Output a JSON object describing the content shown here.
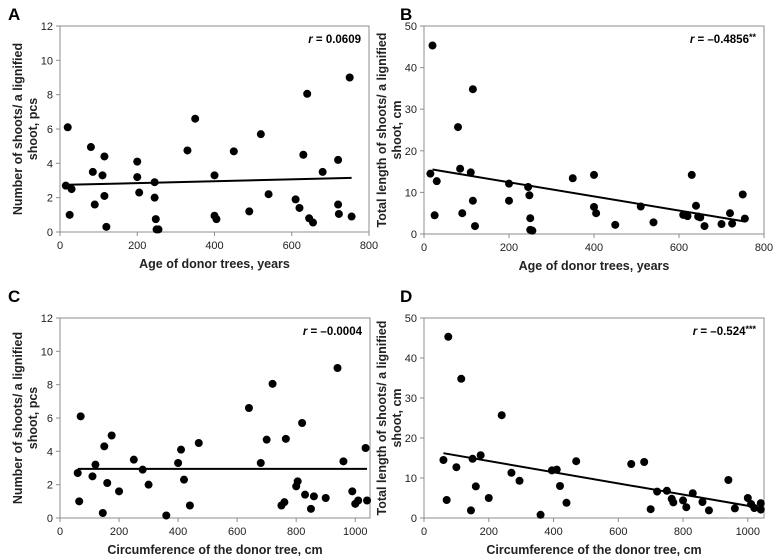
{
  "chart_data": [
    {
      "panel": "A",
      "type": "scatter",
      "xlabel": "Age of donor trees, years",
      "ylabel": [
        "Number of shoots/ a lignified",
        "shoot, pcs"
      ],
      "xlim": [
        0,
        800
      ],
      "ylim": [
        0,
        12
      ],
      "xticks": [
        0,
        200,
        400,
        600,
        800
      ],
      "yticks": [
        0,
        2,
        4,
        6,
        8,
        10,
        12
      ],
      "r_prefix": "r",
      "r_value": " = 0.0609",
      "r_sig": "",
      "trendline": {
        "x": [
          20,
          755
        ],
        "y": [
          2.75,
          3.15
        ]
      },
      "x": [
        15,
        20,
        25,
        30,
        80,
        85,
        90,
        110,
        115,
        115,
        120,
        200,
        200,
        205,
        245,
        245,
        248,
        250,
        255,
        330,
        350,
        400,
        400,
        405,
        450,
        490,
        520,
        540,
        610,
        620,
        630,
        640,
        645,
        655,
        680,
        720,
        720,
        722,
        750,
        755
      ],
      "y": [
        2.7,
        6.1,
        1.0,
        2.5,
        4.95,
        3.5,
        1.6,
        3.3,
        4.4,
        2.1,
        0.3,
        4.1,
        3.2,
        2.3,
        2.9,
        2.0,
        0.75,
        0.15,
        0.15,
        4.75,
        6.6,
        3.3,
        0.95,
        0.75,
        4.7,
        1.2,
        5.7,
        2.2,
        1.9,
        1.4,
        4.5,
        8.05,
        0.8,
        0.55,
        3.5,
        4.2,
        1.6,
        1.05,
        9.0,
        0.9
      ]
    },
    {
      "panel": "B",
      "type": "scatter",
      "xlabel": "Age of donor trees, years",
      "ylabel": [
        "Total length of shoots/ a lignified",
        "shoot, cm"
      ],
      "xlim": [
        0,
        800
      ],
      "ylim": [
        0,
        50
      ],
      "xticks": [
        0,
        200,
        400,
        600,
        800
      ],
      "yticks": [
        0,
        10,
        20,
        30,
        40,
        50
      ],
      "r_prefix": "r",
      "r_value": " = –0.4856",
      "r_sig": "**",
      "trendline": {
        "x": [
          20,
          755
        ],
        "y": [
          15.5,
          3.0
        ]
      },
      "x": [
        15,
        20,
        25,
        30,
        80,
        85,
        90,
        110,
        115,
        115,
        120,
        200,
        200,
        245,
        248,
        250,
        250,
        255,
        350,
        400,
        400,
        405,
        450,
        510,
        540,
        610,
        620,
        630,
        640,
        645,
        650,
        660,
        700,
        720,
        725,
        750,
        755
      ],
      "y": [
        14.5,
        45.3,
        4.5,
        12.7,
        25.7,
        15.7,
        5.0,
        14.8,
        34.8,
        8.0,
        1.9,
        12.1,
        8.0,
        11.3,
        9.3,
        3.8,
        1.0,
        0.8,
        13.4,
        14.2,
        6.5,
        5.0,
        2.2,
        6.6,
        2.8,
        4.6,
        4.3,
        14.2,
        6.8,
        4.2,
        4.0,
        1.9,
        2.4,
        5.0,
        2.5,
        9.5,
        3.7
      ]
    },
    {
      "panel": "C",
      "type": "scatter",
      "xlabel": "Circumference of the donor tree, cm",
      "ylabel": [
        "Number of shoots/ a lignified",
        "shoot, pcs"
      ],
      "xlim": [
        0,
        1050
      ],
      "ylim": [
        0,
        12
      ],
      "xticks": [
        0,
        200,
        400,
        600,
        800,
        1000
      ],
      "yticks": [
        0,
        2,
        4,
        6,
        8,
        10,
        12
      ],
      "r_prefix": "r",
      "r_value": " = –0.0004",
      "r_sig": "",
      "trendline": {
        "x": [
          60,
          1040
        ],
        "y": [
          2.95,
          2.95
        ]
      },
      "x": [
        60,
        65,
        70,
        110,
        120,
        145,
        150,
        160,
        175,
        200,
        250,
        280,
        300,
        360,
        400,
        410,
        420,
        440,
        470,
        640,
        680,
        700,
        720,
        750,
        760,
        765,
        800,
        805,
        820,
        830,
        850,
        860,
        900,
        940,
        960,
        990,
        1000,
        1010,
        1035,
        1040
      ],
      "y": [
        2.7,
        1.0,
        6.1,
        2.5,
        3.2,
        0.3,
        4.3,
        2.1,
        4.95,
        1.6,
        3.5,
        2.9,
        2.0,
        0.15,
        3.3,
        4.1,
        2.3,
        0.75,
        4.5,
        6.6,
        3.3,
        4.7,
        8.05,
        0.75,
        0.95,
        4.75,
        1.9,
        2.2,
        5.7,
        1.4,
        0.55,
        1.3,
        1.2,
        9.0,
        3.4,
        1.6,
        0.85,
        1.05,
        4.2,
        1.05
      ]
    },
    {
      "panel": "D",
      "type": "scatter",
      "xlabel": "Circumference of the donor tree, cm",
      "ylabel": [
        "Total length of shoots/ a lignified",
        "shoot, cm"
      ],
      "xlim": [
        0,
        1050
      ],
      "ylim": [
        0,
        50
      ],
      "xticks": [
        0,
        200,
        400,
        600,
        800,
        1000
      ],
      "yticks": [
        0,
        10,
        20,
        30,
        40,
        50
      ],
      "r_prefix": "r",
      "r_value": " = –0.524",
      "r_sig": "***",
      "trendline": {
        "x": [
          60,
          1040
        ],
        "y": [
          16.2,
          2.5
        ]
      },
      "x": [
        60,
        70,
        75,
        100,
        115,
        145,
        150,
        160,
        175,
        200,
        240,
        270,
        295,
        360,
        395,
        410,
        420,
        440,
        470,
        640,
        680,
        700,
        720,
        750,
        765,
        770,
        800,
        810,
        830,
        860,
        880,
        940,
        960,
        1000,
        1010,
        1020,
        1040,
        1040
      ],
      "y": [
        14.5,
        4.5,
        45.3,
        12.7,
        34.8,
        1.9,
        14.8,
        7.9,
        15.7,
        5.0,
        25.7,
        11.3,
        9.3,
        0.8,
        11.9,
        12.1,
        8.0,
        3.8,
        14.2,
        13.5,
        14.0,
        2.2,
        6.6,
        6.8,
        4.8,
        3.9,
        4.4,
        2.7,
        6.2,
        4.0,
        1.9,
        9.5,
        2.4,
        5.0,
        3.5,
        2.5,
        3.7,
        2.1
      ]
    }
  ]
}
